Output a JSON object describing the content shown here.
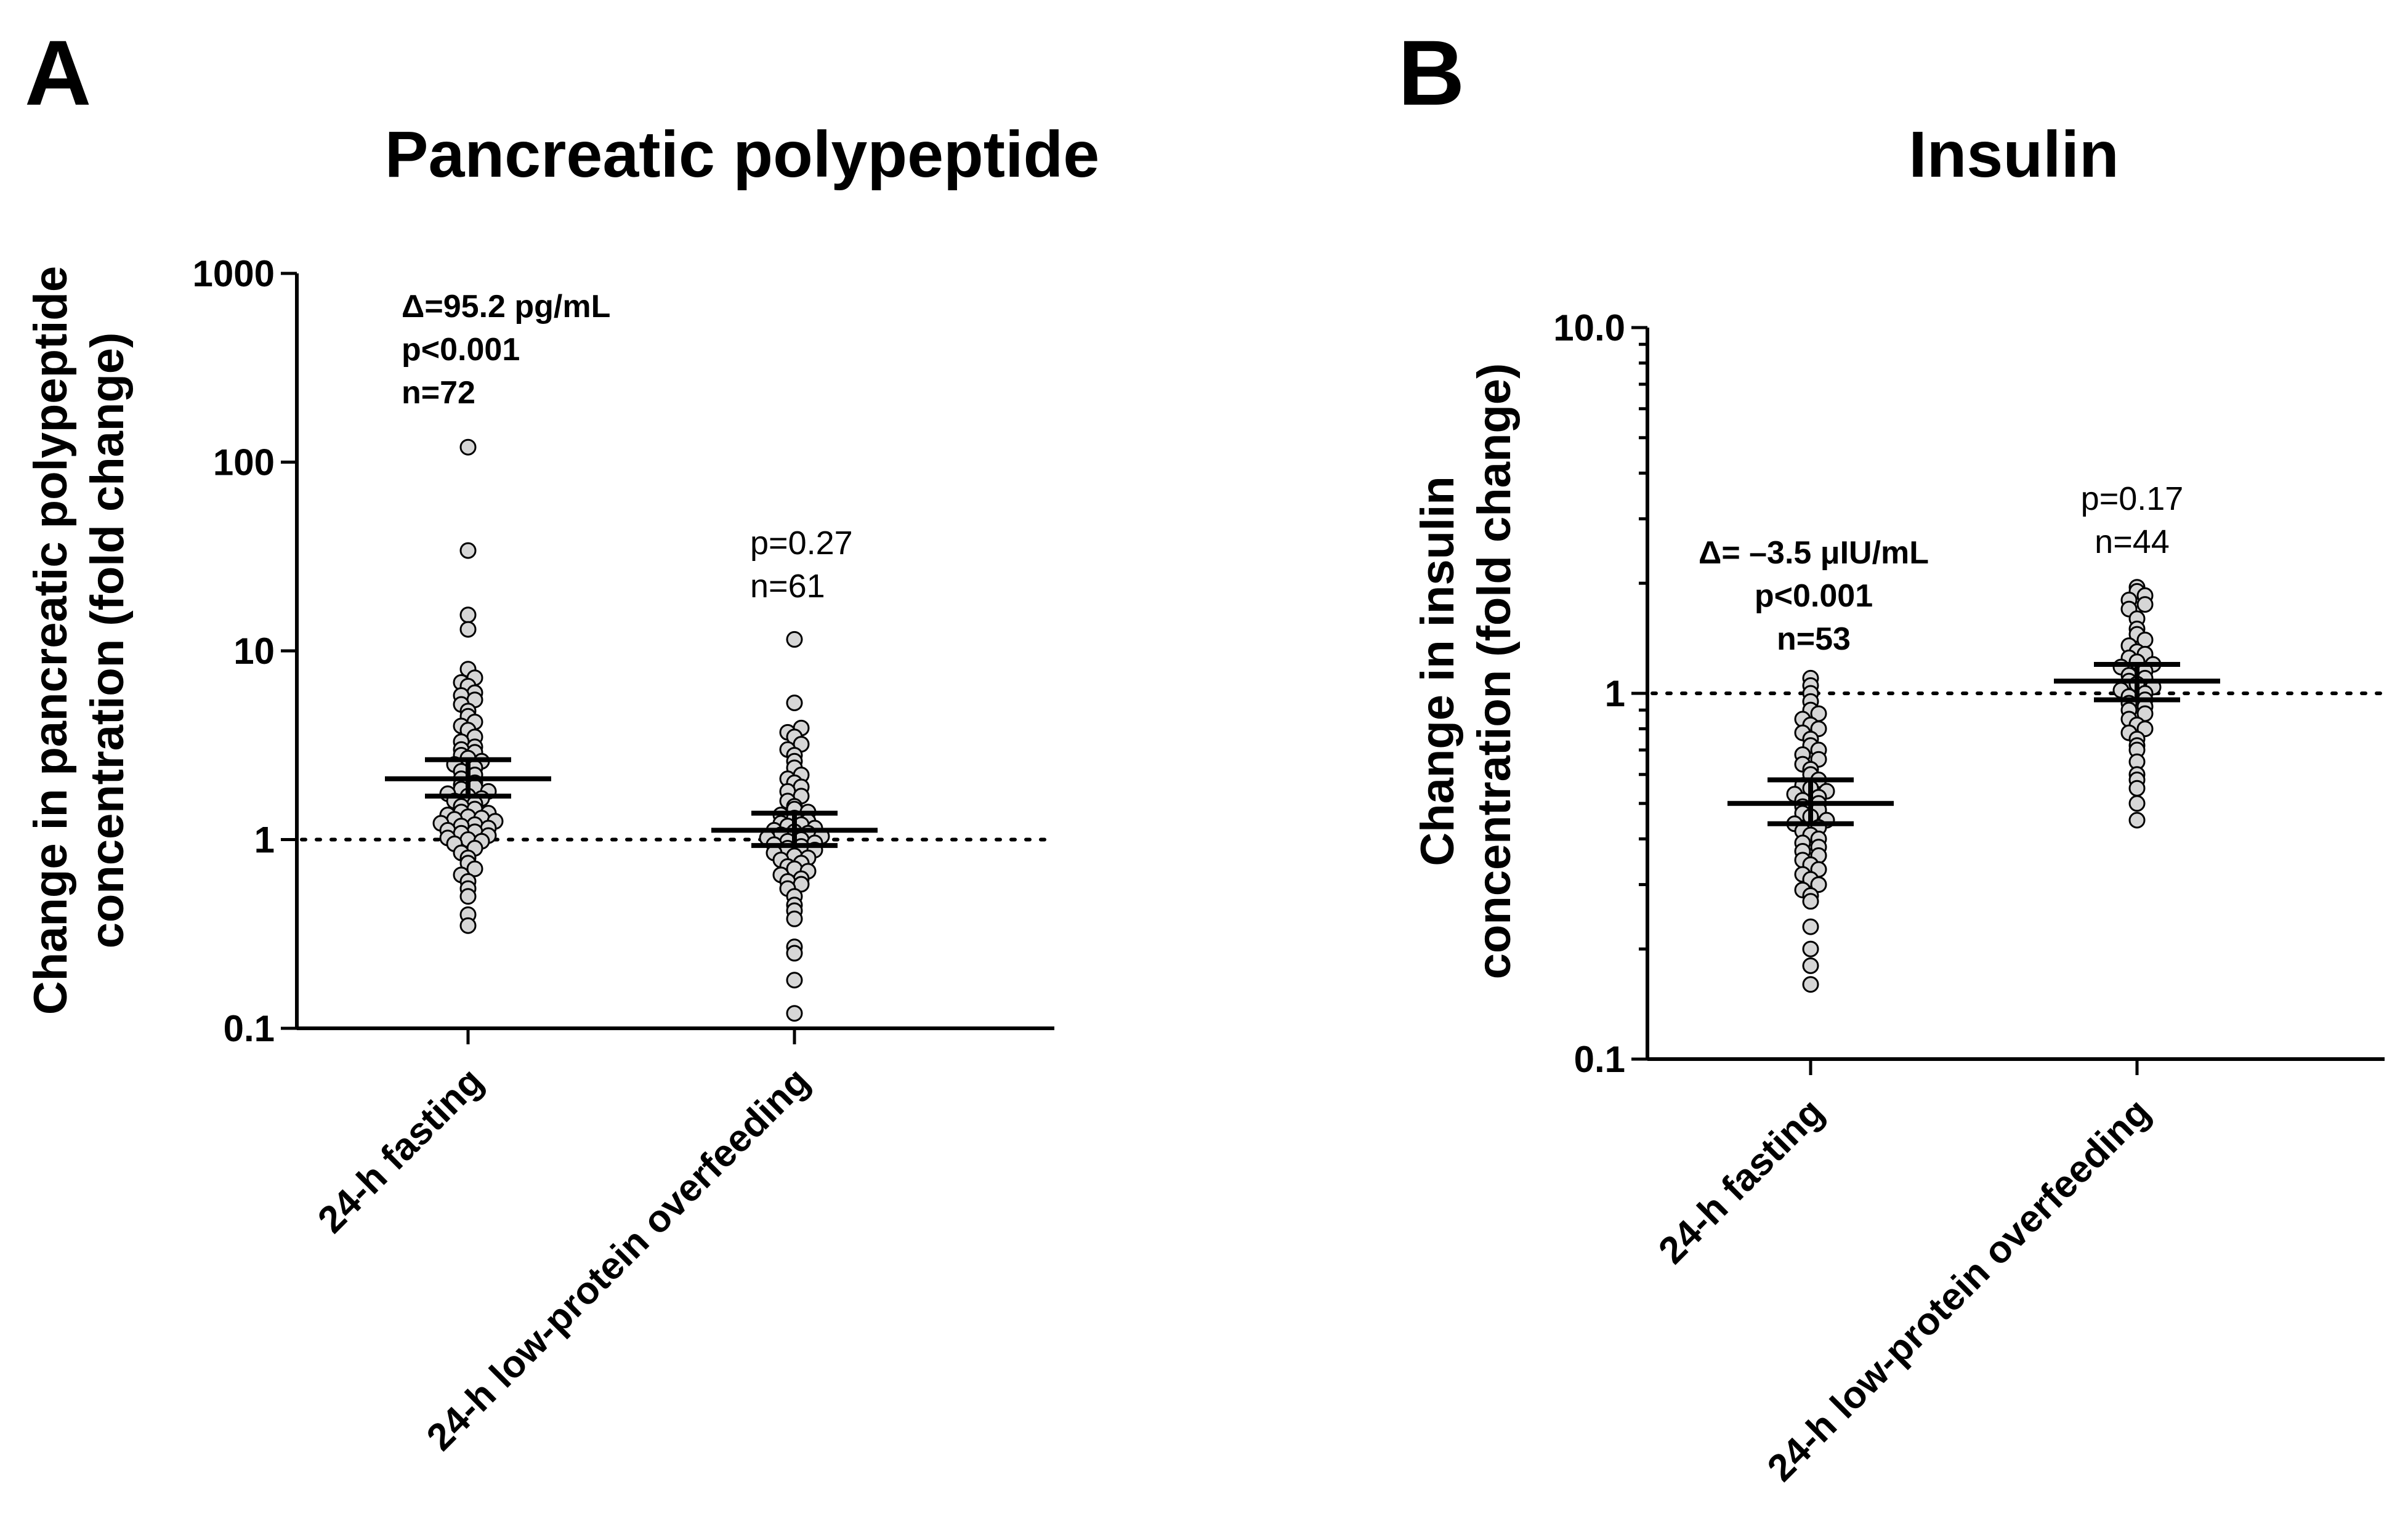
{
  "chart_data": [
    {
      "panel_label": "A",
      "type": "scatter",
      "title": "Pancreatic polypeptide",
      "ylabel_lines": [
        "Change in pancreatic polypeptide",
        "concentration (fold change)"
      ],
      "yscale": "log",
      "ylim": [
        0.1,
        1000
      ],
      "yticks": [
        0.1,
        1,
        10,
        100,
        1000
      ],
      "ytick_labels": [
        "0.1",
        "1",
        "10",
        "100",
        "1000"
      ],
      "reference_line": 1,
      "categories": [
        "24-h fasting",
        "24-h low-protein overfeeding"
      ],
      "series": [
        {
          "name": "24-h fasting",
          "mean": 2.1,
          "err_low": 1.7,
          "err_high": 2.65,
          "annotation": [
            "Δ=95.2 pg/mL",
            "p<0.001",
            "n=72"
          ],
          "annotation_bold": true,
          "values": [
            120,
            34,
            15.5,
            13,
            8,
            7.2,
            6.8,
            6.5,
            6,
            5.8,
            5.5,
            5.2,
            4.8,
            4.5,
            4.2,
            4,
            3.8,
            3.5,
            3.3,
            3.1,
            3,
            2.9,
            2.8,
            2.7,
            2.6,
            2.5,
            2.4,
            2.3,
            2.2,
            2.1,
            2,
            1.95,
            1.9,
            1.85,
            1.8,
            1.75,
            1.7,
            1.65,
            1.6,
            1.55,
            1.5,
            1.45,
            1.4,
            1.38,
            1.35,
            1.32,
            1.3,
            1.28,
            1.25,
            1.22,
            1.2,
            1.18,
            1.15,
            1.12,
            1.1,
            1.08,
            1.05,
            1.02,
            1,
            0.98,
            0.95,
            0.9,
            0.85,
            0.8,
            0.75,
            0.7,
            0.65,
            0.6,
            0.55,
            0.5,
            0.4,
            0.35
          ]
        },
        {
          "name": "24-h low-protein overfeeding",
          "mean": 1.12,
          "err_low": 0.93,
          "err_high": 1.38,
          "annotation": [
            "p=0.27",
            "n=61"
          ],
          "annotation_bold": false,
          "values": [
            11.5,
            5.3,
            3.9,
            3.7,
            3.5,
            3.2,
            3,
            2.8,
            2.6,
            2.4,
            2.2,
            2.1,
            2,
            1.9,
            1.8,
            1.7,
            1.6,
            1.5,
            1.45,
            1.4,
            1.35,
            1.3,
            1.25,
            1.22,
            1.2,
            1.18,
            1.15,
            1.12,
            1.1,
            1.08,
            1.06,
            1.04,
            1.02,
            1,
            0.98,
            0.96,
            0.94,
            0.92,
            0.9,
            0.88,
            0.85,
            0.82,
            0.8,
            0.78,
            0.75,
            0.72,
            0.7,
            0.68,
            0.65,
            0.62,
            0.6,
            0.58,
            0.55,
            0.5,
            0.45,
            0.42,
            0.38,
            0.27,
            0.25,
            0.18,
            0.12
          ]
        }
      ]
    },
    {
      "panel_label": "B",
      "type": "scatter",
      "title": "Insulin",
      "ylabel_lines": [
        "Change in insulin",
        "concentration (fold change)"
      ],
      "yscale": "log",
      "ylim": [
        0.1,
        10
      ],
      "yticks": [
        0.1,
        1,
        10
      ],
      "ytick_labels": [
        "0.1",
        "1",
        "10.0"
      ],
      "reference_line": 1,
      "categories": [
        "24-h fasting",
        "24-h low-protein overfeeding"
      ],
      "series": [
        {
          "name": "24-h fasting",
          "mean": 0.5,
          "err_low": 0.44,
          "err_high": 0.58,
          "annotation": [
            "Δ= –3.5 μIU/mL",
            "p<0.001",
            "n=53"
          ],
          "annotation_bold": true,
          "values": [
            1.1,
            1.05,
            1,
            0.95,
            0.9,
            0.88,
            0.85,
            0.82,
            0.8,
            0.78,
            0.75,
            0.72,
            0.7,
            0.68,
            0.66,
            0.64,
            0.62,
            0.6,
            0.58,
            0.56,
            0.55,
            0.54,
            0.53,
            0.52,
            0.51,
            0.5,
            0.49,
            0.48,
            0.47,
            0.46,
            0.45,
            0.44,
            0.43,
            0.42,
            0.41,
            0.4,
            0.39,
            0.38,
            0.37,
            0.36,
            0.35,
            0.34,
            0.33,
            0.32,
            0.31,
            0.3,
            0.29,
            0.28,
            0.27,
            0.23,
            0.2,
            0.18,
            0.16
          ]
        },
        {
          "name": "24-h low-protein overfeeding",
          "mean": 1.08,
          "err_low": 0.96,
          "err_high": 1.2,
          "annotation": [
            "p=0.17",
            "n=44"
          ],
          "annotation_bold": false,
          "values": [
            1.95,
            1.9,
            1.85,
            1.8,
            1.75,
            1.7,
            1.6,
            1.5,
            1.45,
            1.4,
            1.35,
            1.3,
            1.28,
            1.25,
            1.22,
            1.2,
            1.18,
            1.15,
            1.12,
            1.1,
            1.08,
            1.06,
            1.04,
            1.02,
            1,
            0.98,
            0.96,
            0.94,
            0.92,
            0.9,
            0.88,
            0.85,
            0.82,
            0.8,
            0.78,
            0.75,
            0.72,
            0.7,
            0.65,
            0.6,
            0.58,
            0.55,
            0.5,
            0.45
          ]
        }
      ]
    }
  ]
}
